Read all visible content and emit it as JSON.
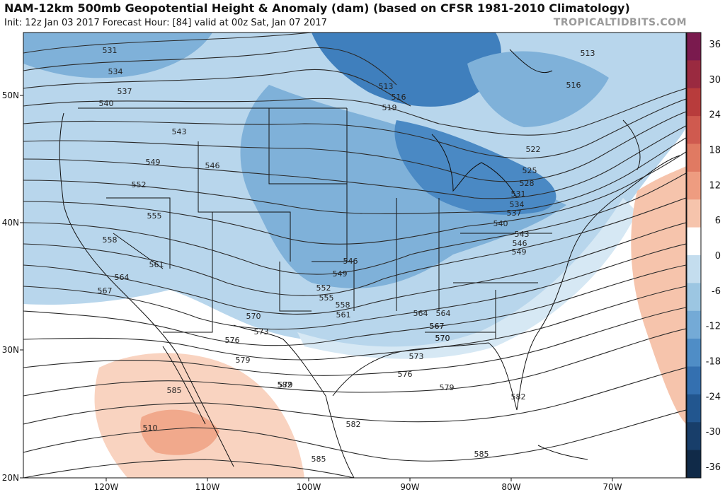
{
  "header": {
    "title": "NAM-12km 500mb Geopotential Height & Anomaly (dam) (based on CFSR 1981-2010 Climatology)",
    "subtitle": "Init: 12z Jan 03 2017   Forecast Hour: [84]   valid at 00z Sat, Jan 07 2017",
    "brand": "TROPICALTIDBITS.COM"
  },
  "axes": {
    "lat_labels": [
      "50N",
      "40N",
      "30N",
      "20N"
    ],
    "lon_labels": [
      "120W",
      "110W",
      "100W",
      "90W",
      "80W",
      "70W"
    ]
  },
  "colorbar": {
    "labels": [
      "36",
      "30",
      "24",
      "18",
      "12",
      "6",
      "0",
      "-6",
      "-12",
      "-18",
      "-24",
      "-30",
      "-36"
    ],
    "colors": [
      "#7a1a4e",
      "#9a2a40",
      "#b83c3c",
      "#cf5a4f",
      "#e07a62",
      "#ee9c80",
      "#f6c4ac",
      "#ffffff",
      "#c4ddee",
      "#9cc6e2",
      "#74aad6",
      "#4f8dc6",
      "#3470b0",
      "#22568f",
      "#183e6a",
      "#102a48"
    ]
  },
  "contour_labels": [
    {
      "text": "531"
    },
    {
      "text": "534"
    },
    {
      "text": "537"
    },
    {
      "text": "540"
    },
    {
      "text": "543"
    },
    {
      "text": "546"
    },
    {
      "text": "549"
    },
    {
      "text": "552"
    },
    {
      "text": "555"
    },
    {
      "text": "558"
    },
    {
      "text": "561"
    },
    {
      "text": "564"
    },
    {
      "text": "567"
    },
    {
      "text": "570"
    },
    {
      "text": "573"
    },
    {
      "text": "576"
    },
    {
      "text": "579"
    },
    {
      "text": "582"
    },
    {
      "text": "585"
    },
    {
      "text": "510"
    },
    {
      "text": "513"
    },
    {
      "text": "516"
    },
    {
      "text": "519"
    },
    {
      "text": "522"
    },
    {
      "text": "525"
    },
    {
      "text": "528"
    },
    {
      "text": "531"
    },
    {
      "text": "534"
    },
    {
      "text": "537"
    },
    {
      "text": "540"
    },
    {
      "text": "543"
    },
    {
      "text": "546"
    },
    {
      "text": "549"
    },
    {
      "text": "546"
    },
    {
      "text": "549"
    },
    {
      "text": "552"
    },
    {
      "text": "555"
    },
    {
      "text": "558"
    },
    {
      "text": "561"
    },
    {
      "text": "564"
    },
    {
      "text": "567"
    },
    {
      "text": "570"
    },
    {
      "text": "573"
    },
    {
      "text": "564"
    },
    {
      "text": "567"
    },
    {
      "text": "570"
    },
    {
      "text": "576"
    },
    {
      "text": "579"
    },
    {
      "text": "582"
    },
    {
      "text": "582"
    },
    {
      "text": "585"
    },
    {
      "text": "513"
    },
    {
      "text": "516"
    },
    {
      "text": "579"
    },
    {
      "text": "585"
    }
  ]
}
